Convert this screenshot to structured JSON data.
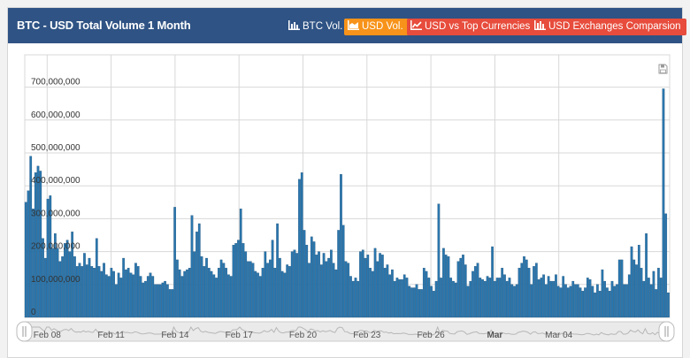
{
  "header": {
    "title": "BTC - USD Total Volume 1 Month",
    "buttons": [
      {
        "label": "BTC Vol.",
        "style": "plain"
      },
      {
        "label": "USD Vol.",
        "style": "active"
      },
      {
        "label": "USD vs Top Currencies",
        "style": "red"
      },
      {
        "label": "USD Exchanges Comparsion",
        "style": "red"
      }
    ]
  },
  "colors": {
    "header_bg": "#2f5384",
    "bar_fill": "#2a76ad",
    "bar_stroke": "#1d4f77",
    "active_button": "#f7931a",
    "red_button": "#e74c3c",
    "grid": "#d8d8d8"
  },
  "chart_data": {
    "type": "bar",
    "xlabel": "",
    "ylabel": "",
    "ylim": [
      0,
      750000000
    ],
    "yticks": [
      0,
      100000000,
      200000000,
      300000000,
      400000000,
      500000000,
      600000000,
      700000000
    ],
    "ytick_labels": [
      "0",
      "100,000,000",
      "200,000,000",
      "300,000,000",
      "400,000,000",
      "500,000,000",
      "600,000,000",
      "700,000,000"
    ],
    "grid": true,
    "x_tick_labels": [
      {
        "label": "Feb 08",
        "pos": 8,
        "bold": false
      },
      {
        "label": "Feb 11",
        "pos": 11,
        "bold": false
      },
      {
        "label": "Feb 14",
        "pos": 14,
        "bold": false
      },
      {
        "label": "Feb 17",
        "pos": 17,
        "bold": false
      },
      {
        "label": "Feb 20",
        "pos": 20,
        "bold": false
      },
      {
        "label": "Feb 23",
        "pos": 23,
        "bold": false
      },
      {
        "label": "Feb 26",
        "pos": 26,
        "bold": false
      },
      {
        "label": "Mar",
        "pos": 29,
        "bold": true
      },
      {
        "label": "Mar 04",
        "pos": 32,
        "bold": false
      }
    ],
    "x_start_day": 6.95,
    "x_end_day": 37.2,
    "bars_per_day": 12,
    "values_millions": [
      350,
      385,
      490,
      330,
      440,
      460,
      445,
      240,
      180,
      360,
      370,
      210,
      255,
      210,
      170,
      185,
      225,
      235,
      200,
      260,
      185,
      155,
      165,
      155,
      195,
      160,
      180,
      155,
      150,
      240,
      155,
      140,
      165,
      130,
      125,
      150,
      140,
      100,
      135,
      120,
      180,
      145,
      150,
      135,
      130,
      165,
      155,
      125,
      105,
      110,
      125,
      135,
      125,
      100,
      100,
      100,
      105,
      110,
      100,
      85,
      85,
      335,
      175,
      145,
      125,
      140,
      145,
      150,
      310,
      200,
      260,
      285,
      185,
      155,
      180,
      150,
      140,
      130,
      120,
      150,
      175,
      165,
      150,
      130,
      125,
      220,
      225,
      235,
      330,
      225,
      200,
      170,
      170,
      165,
      140,
      135,
      125,
      150,
      200,
      165,
      175,
      235,
      150,
      285,
      180,
      140,
      135,
      160,
      155,
      200,
      205,
      195,
      420,
      440,
      265,
      220,
      165,
      245,
      230,
      190,
      200,
      160,
      195,
      170,
      180,
      205,
      165,
      145,
      265,
      435,
      280,
      170,
      165,
      125,
      110,
      120,
      110,
      200,
      205,
      180,
      190,
      150,
      140,
      210,
      170,
      195,
      190,
      150,
      160,
      130,
      145,
      110,
      120,
      115,
      115,
      130,
      120,
      95,
      90,
      90,
      100,
      85,
      85,
      150,
      140,
      120,
      95,
      80,
      110,
      345,
      120,
      210,
      190,
      185,
      120,
      110,
      105,
      170,
      180,
      190,
      160,
      95,
      110,
      140,
      155,
      165,
      120,
      115,
      110,
      125,
      120,
      215,
      110,
      120,
      120,
      150,
      130,
      110,
      120,
      100,
      95,
      100,
      150,
      165,
      185,
      175,
      150,
      100,
      155,
      165,
      115,
      120,
      130,
      100,
      125,
      110,
      110,
      130,
      95,
      90,
      125,
      100,
      90,
      95,
      110,
      100,
      100,
      90,
      80,
      90,
      120,
      115,
      95,
      75,
      100,
      80,
      145,
      110,
      90,
      80,
      110,
      95,
      100,
      175,
      175,
      100,
      100,
      130,
      215,
      175,
      160,
      220,
      150,
      110,
      255,
      120,
      100,
      140,
      85,
      150,
      120,
      695,
      315,
      75
    ]
  }
}
